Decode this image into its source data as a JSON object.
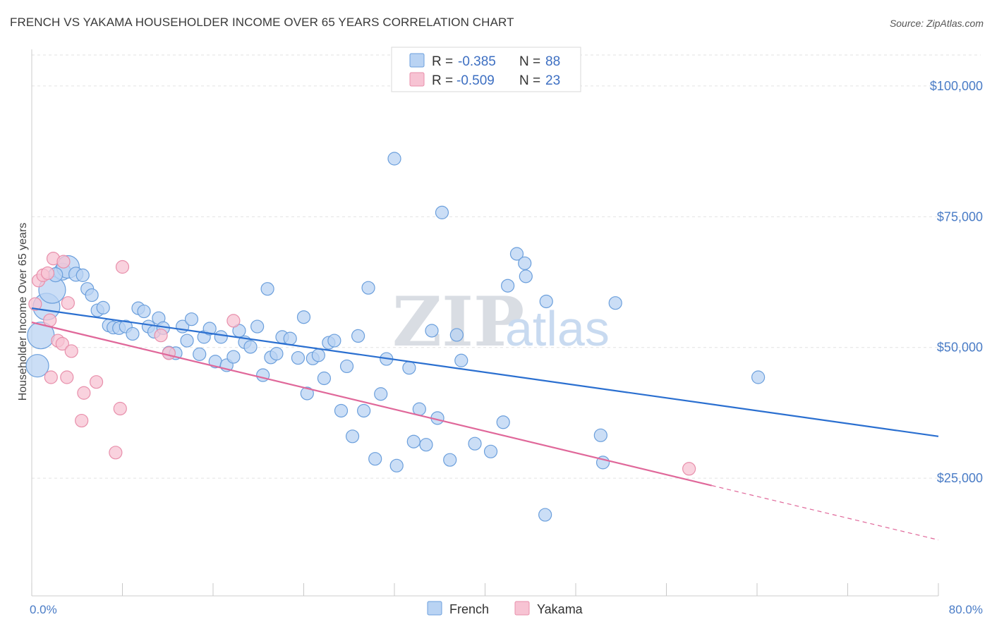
{
  "title": "FRENCH VS YAKAMA HOUSEHOLDER INCOME OVER 65 YEARS CORRELATION CHART",
  "source": "Source: ZipAtlas.com",
  "watermark": {
    "zip": "ZIP",
    "atlas": "atlas"
  },
  "colors": {
    "french_fill": "#b9d3f3",
    "french_stroke": "#6b9fdc",
    "french_line": "#2a6fd0",
    "yakama_fill": "#f7c3d3",
    "yakama_stroke": "#e88fab",
    "yakama_line": "#e0689a",
    "tick_label": "#4a7cc6",
    "grid": "#e2e2e2"
  },
  "legend": {
    "rows": [
      {
        "r_label": "R = ",
        "r_value": "-0.385",
        "n_label": "N = ",
        "n_value": "88"
      },
      {
        "r_label": "R = ",
        "r_value": "-0.509",
        "n_label": "N = ",
        "n_value": "23"
      }
    ],
    "placement": "top-center"
  },
  "chart_data": {
    "type": "scatter",
    "title": "FRENCH VS YAKAMA HOUSEHOLDER INCOME OVER 65 YEARS CORRELATION CHART",
    "xlabel": "",
    "ylabel": "Householder Income Over 65 years",
    "xlim": [
      0,
      80
    ],
    "ylim": [
      2500,
      107000
    ],
    "x_tick_labels": [
      "0.0%",
      "80.0%"
    ],
    "x_tick_values": [
      0,
      80
    ],
    "x_minor_ticks": [
      0,
      8,
      16,
      24,
      32,
      40,
      48,
      56,
      64,
      72,
      80
    ],
    "y_ticks": [
      25000,
      50000,
      75000,
      100000
    ],
    "y_tick_labels": [
      "$25,000",
      "$50,000",
      "$75,000",
      "$100,000"
    ],
    "grid": true,
    "legend_placement": "bottom-center",
    "series": [
      {
        "name": "French",
        "trend": {
          "x": [
            0,
            80
          ],
          "y": [
            57500,
            33000
          ],
          "dashed_beyond": null
        },
        "points": [
          {
            "x": 0.5,
            "y": 46500,
            "s": 16
          },
          {
            "x": 0.8,
            "y": 52300,
            "s": 19
          },
          {
            "x": 1.3,
            "y": 57800,
            "s": 19
          },
          {
            "x": 1.8,
            "y": 61000,
            "s": 19
          },
          {
            "x": 2.7,
            "y": 64500,
            "s": 12
          },
          {
            "x": 3.2,
            "y": 65400,
            "s": 16
          },
          {
            "x": 3.9,
            "y": 64000,
            "s": 10
          },
          {
            "x": 4.5,
            "y": 63800,
            "s": 9
          },
          {
            "x": 4.9,
            "y": 61200,
            "s": 9
          },
          {
            "x": 5.3,
            "y": 60000,
            "s": 9
          },
          {
            "x": 5.8,
            "y": 57100,
            "s": 9
          },
          {
            "x": 6.3,
            "y": 57600,
            "s": 9
          },
          {
            "x": 6.8,
            "y": 54200,
            "s": 9
          },
          {
            "x": 7.2,
            "y": 53800,
            "s": 9
          },
          {
            "x": 7.7,
            "y": 53700,
            "s": 9
          },
          {
            "x": 8.3,
            "y": 54000,
            "s": 9
          },
          {
            "x": 8.9,
            "y": 52600,
            "s": 9
          },
          {
            "x": 9.4,
            "y": 57500,
            "s": 9
          },
          {
            "x": 9.9,
            "y": 56900,
            "s": 9
          },
          {
            "x": 10.3,
            "y": 54000,
            "s": 9
          },
          {
            "x": 10.8,
            "y": 53000,
            "s": 9
          },
          {
            "x": 11.2,
            "y": 55600,
            "s": 9
          },
          {
            "x": 11.6,
            "y": 53700,
            "s": 9
          },
          {
            "x": 12.1,
            "y": 49000,
            "s": 9
          },
          {
            "x": 12.7,
            "y": 48900,
            "s": 9
          },
          {
            "x": 13.3,
            "y": 54000,
            "s": 9
          },
          {
            "x": 13.7,
            "y": 51300,
            "s": 9
          },
          {
            "x": 14.1,
            "y": 55400,
            "s": 9
          },
          {
            "x": 14.8,
            "y": 48700,
            "s": 9
          },
          {
            "x": 15.2,
            "y": 52000,
            "s": 9
          },
          {
            "x": 15.7,
            "y": 53600,
            "s": 9
          },
          {
            "x": 16.2,
            "y": 47300,
            "s": 9
          },
          {
            "x": 16.7,
            "y": 52000,
            "s": 9
          },
          {
            "x": 17.2,
            "y": 46600,
            "s": 9
          },
          {
            "x": 17.8,
            "y": 48200,
            "s": 9
          },
          {
            "x": 18.3,
            "y": 53200,
            "s": 9
          },
          {
            "x": 18.8,
            "y": 51000,
            "s": 9
          },
          {
            "x": 19.3,
            "y": 50100,
            "s": 9
          },
          {
            "x": 19.9,
            "y": 54000,
            "s": 9
          },
          {
            "x": 20.4,
            "y": 44700,
            "s": 9
          },
          {
            "x": 20.8,
            "y": 61200,
            "s": 9
          },
          {
            "x": 21.1,
            "y": 48100,
            "s": 9
          },
          {
            "x": 21.6,
            "y": 48800,
            "s": 9
          },
          {
            "x": 22.1,
            "y": 52000,
            "s": 9
          },
          {
            "x": 22.8,
            "y": 51700,
            "s": 9
          },
          {
            "x": 23.5,
            "y": 48000,
            "s": 9
          },
          {
            "x": 24.0,
            "y": 55800,
            "s": 9
          },
          {
            "x": 24.3,
            "y": 41200,
            "s": 9
          },
          {
            "x": 24.8,
            "y": 47900,
            "s": 9
          },
          {
            "x": 25.3,
            "y": 48500,
            "s": 9
          },
          {
            "x": 25.8,
            "y": 44100,
            "s": 9
          },
          {
            "x": 26.2,
            "y": 50900,
            "s": 9
          },
          {
            "x": 26.7,
            "y": 51300,
            "s": 9
          },
          {
            "x": 27.3,
            "y": 37900,
            "s": 9
          },
          {
            "x": 27.8,
            "y": 46400,
            "s": 9
          },
          {
            "x": 28.3,
            "y": 33000,
            "s": 9
          },
          {
            "x": 28.8,
            "y": 52200,
            "s": 9
          },
          {
            "x": 29.3,
            "y": 37900,
            "s": 9
          },
          {
            "x": 29.7,
            "y": 61400,
            "s": 9
          },
          {
            "x": 30.3,
            "y": 28700,
            "s": 9
          },
          {
            "x": 30.8,
            "y": 41100,
            "s": 9
          },
          {
            "x": 31.3,
            "y": 47800,
            "s": 9
          },
          {
            "x": 32.0,
            "y": 86100,
            "s": 9
          },
          {
            "x": 32.2,
            "y": 27400,
            "s": 9
          },
          {
            "x": 33.3,
            "y": 46100,
            "s": 9
          },
          {
            "x": 33.7,
            "y": 32000,
            "s": 9
          },
          {
            "x": 34.2,
            "y": 38200,
            "s": 9
          },
          {
            "x": 34.8,
            "y": 31400,
            "s": 9
          },
          {
            "x": 35.3,
            "y": 53200,
            "s": 9
          },
          {
            "x": 35.8,
            "y": 36500,
            "s": 9
          },
          {
            "x": 36.2,
            "y": 75800,
            "s": 9
          },
          {
            "x": 36.9,
            "y": 28500,
            "s": 9
          },
          {
            "x": 37.5,
            "y": 52400,
            "s": 9
          },
          {
            "x": 37.9,
            "y": 47500,
            "s": 9
          },
          {
            "x": 39.1,
            "y": 31600,
            "s": 9
          },
          {
            "x": 40.5,
            "y": 30100,
            "s": 9
          },
          {
            "x": 41.6,
            "y": 35700,
            "s": 9
          },
          {
            "x": 42.0,
            "y": 61800,
            "s": 9
          },
          {
            "x": 42.8,
            "y": 67900,
            "s": 9
          },
          {
            "x": 43.5,
            "y": 66100,
            "s": 9
          },
          {
            "x": 43.6,
            "y": 63600,
            "s": 9
          },
          {
            "x": 45.3,
            "y": 18000,
            "s": 9
          },
          {
            "x": 45.4,
            "y": 58800,
            "s": 9
          },
          {
            "x": 50.2,
            "y": 33200,
            "s": 9
          },
          {
            "x": 50.4,
            "y": 28000,
            "s": 9
          },
          {
            "x": 51.5,
            "y": 58500,
            "s": 9
          },
          {
            "x": 64.1,
            "y": 44300,
            "s": 9
          },
          {
            "x": 2.1,
            "y": 63900,
            "s": 10
          }
        ]
      },
      {
        "name": "Yakama",
        "trend": {
          "x": [
            0,
            60
          ],
          "y": [
            54800,
            23600
          ],
          "dashed_to": {
            "x": 80,
            "y": 13200
          }
        },
        "points": [
          {
            "x": 0.3,
            "y": 58300,
            "s": 9
          },
          {
            "x": 0.6,
            "y": 62800,
            "s": 9
          },
          {
            "x": 1.0,
            "y": 63800,
            "s": 9
          },
          {
            "x": 1.4,
            "y": 64200,
            "s": 9
          },
          {
            "x": 1.6,
            "y": 55200,
            "s": 9
          },
          {
            "x": 1.7,
            "y": 44300,
            "s": 9
          },
          {
            "x": 1.9,
            "y": 67000,
            "s": 9
          },
          {
            "x": 2.3,
            "y": 51300,
            "s": 9
          },
          {
            "x": 2.7,
            "y": 50700,
            "s": 9
          },
          {
            "x": 2.8,
            "y": 66400,
            "s": 9
          },
          {
            "x": 3.1,
            "y": 44300,
            "s": 9
          },
          {
            "x": 3.2,
            "y": 58500,
            "s": 9
          },
          {
            "x": 3.5,
            "y": 49300,
            "s": 9
          },
          {
            "x": 4.4,
            "y": 36000,
            "s": 9
          },
          {
            "x": 4.6,
            "y": 41300,
            "s": 9
          },
          {
            "x": 5.7,
            "y": 43400,
            "s": 9
          },
          {
            "x": 7.4,
            "y": 29900,
            "s": 9
          },
          {
            "x": 7.8,
            "y": 38300,
            "s": 9
          },
          {
            "x": 8.0,
            "y": 65400,
            "s": 9
          },
          {
            "x": 11.4,
            "y": 52300,
            "s": 9
          },
          {
            "x": 12.1,
            "y": 48900,
            "s": 9
          },
          {
            "x": 17.8,
            "y": 55100,
            "s": 9
          },
          {
            "x": 58.0,
            "y": 26800,
            "s": 9
          }
        ]
      }
    ]
  }
}
